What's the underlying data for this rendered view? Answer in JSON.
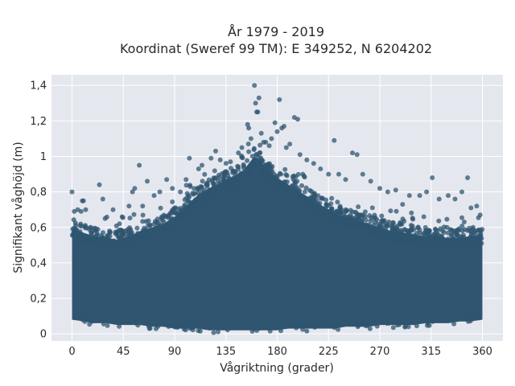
{
  "chart_data": {
    "type": "scatter",
    "title_line1": "År 1979 - 2019",
    "title_line2": "Koordinat (Sweref 99 TM): E 349252, N 6204202",
    "xlabel": "Vågriktning (grader)",
    "ylabel": "Signifikant våghöjd (m)",
    "xlim": [
      -18,
      378
    ],
    "ylim": [
      -0.04,
      1.46
    ],
    "x_ticks": [
      0,
      45,
      90,
      135,
      180,
      225,
      270,
      315,
      360
    ],
    "x_tick_labels": [
      "0",
      "45",
      "90",
      "135",
      "180",
      "225",
      "270",
      "315",
      "360"
    ],
    "y_ticks": [
      0,
      0.2,
      0.4,
      0.6,
      0.8,
      1.0,
      1.2,
      1.4
    ],
    "y_tick_labels": [
      "0",
      "0,2",
      "0,4",
      "0,6",
      "0,8",
      "1",
      "1,2",
      "1,4"
    ],
    "grid": true,
    "colors": {
      "marker": "#2f5570",
      "plot_background": "#e5e7ef",
      "grid": "#ffffff",
      "page_background": "#ffffff"
    },
    "envelope": {
      "x": [
        0,
        10,
        20,
        30,
        40,
        50,
        60,
        70,
        80,
        90,
        100,
        110,
        120,
        130,
        140,
        150,
        155,
        160,
        165,
        170,
        180,
        190,
        200,
        210,
        220,
        230,
        240,
        250,
        260,
        270,
        280,
        290,
        300,
        310,
        320,
        330,
        340,
        350,
        360
      ],
      "upper": [
        0.6,
        0.57,
        0.55,
        0.54,
        0.53,
        0.55,
        0.58,
        0.6,
        0.62,
        0.66,
        0.72,
        0.78,
        0.82,
        0.85,
        0.88,
        0.92,
        0.96,
        1.0,
        0.98,
        0.93,
        0.88,
        0.84,
        0.8,
        0.76,
        0.72,
        0.68,
        0.66,
        0.64,
        0.62,
        0.6,
        0.58,
        0.57,
        0.56,
        0.55,
        0.55,
        0.54,
        0.54,
        0.55,
        0.56
      ],
      "lower": [
        0.08,
        0.07,
        0.06,
        0.06,
        0.05,
        0.05,
        0.05,
        0.04,
        0.04,
        0.03,
        0.03,
        0.03,
        0.02,
        0.02,
        0.02,
        0.02,
        0.02,
        0.02,
        0.02,
        0.02,
        0.02,
        0.03,
        0.03,
        0.03,
        0.03,
        0.03,
        0.04,
        0.04,
        0.04,
        0.05,
        0.05,
        0.05,
        0.05,
        0.06,
        0.06,
        0.06,
        0.07,
        0.07,
        0.08
      ]
    },
    "outliers": [
      {
        "x": 0,
        "y": 0.8
      },
      {
        "x": 2,
        "y": 0.69
      },
      {
        "x": 5,
        "y": 0.7
      },
      {
        "x": 8,
        "y": 0.69
      },
      {
        "x": 9,
        "y": 0.75
      },
      {
        "x": 10,
        "y": 0.75
      },
      {
        "x": 12,
        "y": 0.7
      },
      {
        "x": 24,
        "y": 0.84
      },
      {
        "x": 27,
        "y": 0.76
      },
      {
        "x": 29,
        "y": 0.65
      },
      {
        "x": 36,
        "y": 0.7
      },
      {
        "x": 44,
        "y": 0.66
      },
      {
        "x": 50,
        "y": 0.72
      },
      {
        "x": 53,
        "y": 0.8
      },
      {
        "x": 55,
        "y": 0.82
      },
      {
        "x": 59,
        "y": 0.95
      },
      {
        "x": 62,
        "y": 0.72
      },
      {
        "x": 66,
        "y": 0.86
      },
      {
        "x": 72,
        "y": 0.78
      },
      {
        "x": 77,
        "y": 0.8
      },
      {
        "x": 83,
        "y": 0.87
      },
      {
        "x": 88,
        "y": 0.82
      },
      {
        "x": 95,
        "y": 0.8
      },
      {
        "x": 100,
        "y": 0.87
      },
      {
        "x": 103,
        "y": 0.99
      },
      {
        "x": 111,
        "y": 0.93
      },
      {
        "x": 114,
        "y": 0.95
      },
      {
        "x": 122,
        "y": 0.99
      },
      {
        "x": 126,
        "y": 1.03
      },
      {
        "x": 130,
        "y": 0.98
      },
      {
        "x": 139,
        "y": 0.97
      },
      {
        "x": 146,
        "y": 1.02
      },
      {
        "x": 149,
        "y": 1.05
      },
      {
        "x": 154,
        "y": 1.18
      },
      {
        "x": 155,
        "y": 1.16
      },
      {
        "x": 157,
        "y": 1.1
      },
      {
        "x": 160,
        "y": 1.4
      },
      {
        "x": 161,
        "y": 1.3
      },
      {
        "x": 162,
        "y": 1.25
      },
      {
        "x": 163,
        "y": 1.25
      },
      {
        "x": 164,
        "y": 1.33
      },
      {
        "x": 166,
        "y": 1.13
      },
      {
        "x": 168,
        "y": 1.08
      },
      {
        "x": 170,
        "y": 1.08
      },
      {
        "x": 173,
        "y": 1.06
      },
      {
        "x": 175,
        "y": 1.1
      },
      {
        "x": 178,
        "y": 1.19
      },
      {
        "x": 180,
        "y": 1.14
      },
      {
        "x": 182,
        "y": 1.32
      },
      {
        "x": 184,
        "y": 1.16
      },
      {
        "x": 186,
        "y": 1.17
      },
      {
        "x": 188,
        "y": 1.05
      },
      {
        "x": 191,
        "y": 1.07
      },
      {
        "x": 195,
        "y": 1.22
      },
      {
        "x": 198,
        "y": 1.21
      },
      {
        "x": 200,
        "y": 1.01
      },
      {
        "x": 206,
        "y": 0.98
      },
      {
        "x": 212,
        "y": 0.96
      },
      {
        "x": 218,
        "y": 0.93
      },
      {
        "x": 225,
        "y": 0.9
      },
      {
        "x": 230,
        "y": 1.09
      },
      {
        "x": 234,
        "y": 0.9
      },
      {
        "x": 240,
        "y": 0.87
      },
      {
        "x": 246,
        "y": 1.02
      },
      {
        "x": 250,
        "y": 1.01
      },
      {
        "x": 255,
        "y": 0.9
      },
      {
        "x": 262,
        "y": 0.86
      },
      {
        "x": 270,
        "y": 0.82
      },
      {
        "x": 277,
        "y": 0.8
      },
      {
        "x": 284,
        "y": 0.81
      },
      {
        "x": 290,
        "y": 0.73
      },
      {
        "x": 296,
        "y": 0.78
      },
      {
        "x": 305,
        "y": 0.78
      },
      {
        "x": 311,
        "y": 0.8
      },
      {
        "x": 316,
        "y": 0.88
      },
      {
        "x": 322,
        "y": 0.76
      },
      {
        "x": 330,
        "y": 0.78
      },
      {
        "x": 336,
        "y": 0.76
      },
      {
        "x": 342,
        "y": 0.8
      },
      {
        "x": 347,
        "y": 0.88
      },
      {
        "x": 350,
        "y": 0.71
      },
      {
        "x": 355,
        "y": 0.72
      },
      {
        "x": 358,
        "y": 0.67
      }
    ]
  }
}
